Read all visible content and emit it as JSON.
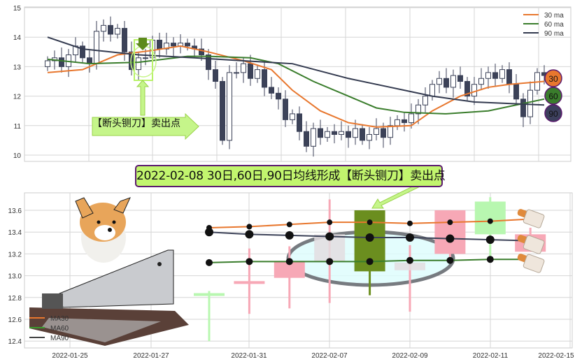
{
  "chart_data": [
    {
      "type": "candlestick",
      "yticks": [
        10,
        11,
        12,
        13,
        14,
        15
      ],
      "ylim": [
        9.8,
        15.1
      ],
      "grid": true,
      "legend_placement": "top-right",
      "legend": [
        {
          "label": "30 ma",
          "color": "#e8772e"
        },
        {
          "label": "60 ma",
          "color": "#3a7d2c"
        },
        {
          "label": "90 ma",
          "color": "#333a4f"
        }
      ],
      "close": [
        13.2,
        13.3,
        13.0,
        13.4,
        13.7,
        13.3,
        13.1,
        14.2,
        14.4,
        14.1,
        14.3,
        13.5,
        12.9,
        13.3,
        13.3,
        13.9,
        13.6,
        13.8,
        13.7,
        13.8,
        13.7,
        13.6,
        13.4,
        12.9,
        12.5,
        10.5,
        12.8,
        12.8,
        13.1,
        12.6,
        12.9,
        12.3,
        12.1,
        11.9,
        11.2,
        11.4,
        10.8,
        10.3,
        10.9,
        10.6,
        10.8,
        10.7,
        10.8,
        10.6,
        10.9,
        10.5,
        10.7,
        10.9,
        10.6,
        11.0,
        11.2,
        11.1,
        11.4,
        11.7,
        12.0,
        12.4,
        12.6,
        12.3,
        12.7,
        12.5,
        12.0,
        12.4,
        12.6,
        12.8,
        12.6,
        12.9,
        12.4,
        11.9,
        11.3,
        12.2,
        12.8,
        12.7
      ],
      "ma30": [
        [
          0,
          12.8
        ],
        [
          5,
          12.9
        ],
        [
          10,
          13.4
        ],
        [
          15,
          13.55
        ],
        [
          19,
          13.7
        ],
        [
          23,
          13.5
        ],
        [
          28,
          13.2
        ],
        [
          32,
          12.9
        ],
        [
          35,
          12.2
        ],
        [
          39,
          11.5
        ],
        [
          43,
          11.1
        ],
        [
          47,
          10.95
        ],
        [
          52,
          11.0
        ],
        [
          55,
          11.5
        ],
        [
          59,
          12.0
        ],
        [
          63,
          12.3
        ],
        [
          66,
          12.4
        ],
        [
          71,
          12.5
        ]
      ],
      "ma60": [
        [
          0,
          13.25
        ],
        [
          6,
          13.1
        ],
        [
          13,
          13.15
        ],
        [
          20,
          13.35
        ],
        [
          23,
          13.35
        ],
        [
          29,
          13.3
        ],
        [
          33,
          13.1
        ],
        [
          38,
          12.5
        ],
        [
          43,
          12.0
        ],
        [
          47,
          11.6
        ],
        [
          51,
          11.45
        ],
        [
          57,
          11.4
        ],
        [
          63,
          11.5
        ],
        [
          67,
          11.7
        ],
        [
          71,
          11.9
        ]
      ],
      "ma90": [
        [
          0,
          14.0
        ],
        [
          5,
          13.6
        ],
        [
          13,
          13.4
        ],
        [
          21,
          13.3
        ],
        [
          28,
          13.2
        ],
        [
          35,
          13.1
        ],
        [
          43,
          12.6
        ],
        [
          49,
          12.3
        ],
        [
          55,
          12.0
        ],
        [
          61,
          11.8
        ],
        [
          66,
          11.75
        ],
        [
          71,
          11.7
        ]
      ],
      "annotation": "【断头铡刀】卖出点",
      "badges": [
        {
          "label": "30",
          "color": "#e8772e"
        },
        {
          "label": "60",
          "color": "#3a7d2c"
        },
        {
          "label": "90",
          "color": "#3c3f5c"
        }
      ]
    },
    {
      "type": "candlestick",
      "yticks": [
        12.4,
        12.6,
        12.8,
        13.0,
        13.2,
        13.4,
        13.6
      ],
      "ylim": [
        12.33,
        13.76
      ],
      "xticks": [
        "2022-01-25",
        "2022-01-27",
        "2022-01-31",
        "2022-02-07",
        "2022-02-09",
        "2022-02-11",
        "2022-02-15"
      ],
      "grid": true,
      "legend_placement": "bottom-left",
      "legend": [
        {
          "label": "MA30",
          "color": "#e8772e"
        },
        {
          "label": "MA60",
          "color": "#3a9a2c"
        },
        {
          "label": "MA90",
          "color": "#444"
        }
      ],
      "candles": [
        {
          "o": 12.82,
          "c": 12.84,
          "h": 12.86,
          "l": 12.4,
          "color": "#b8f7b0"
        },
        {
          "o": 12.95,
          "c": 12.95,
          "h": 13.25,
          "l": 12.65,
          "color": "#f7a8b6"
        },
        {
          "o": 12.98,
          "c": 13.13,
          "h": 13.27,
          "l": 12.7,
          "color": "#f7a8b6"
        },
        {
          "o": 13.13,
          "c": 13.38,
          "h": 13.7,
          "l": 12.75,
          "color": "#e3dde0"
        },
        {
          "o": 13.6,
          "c": 13.04,
          "h": 13.6,
          "l": 12.82,
          "color": "#6b8e1f"
        },
        {
          "o": 13.05,
          "c": 13.12,
          "h": 13.28,
          "l": 12.67,
          "color": "#e3dde0"
        },
        {
          "o": 13.2,
          "c": 13.6,
          "h": 13.6,
          "l": 13.12,
          "color": "#f7a8b6"
        },
        {
          "o": 13.68,
          "c": 13.38,
          "h": 13.72,
          "l": 13.14,
          "color": "#b8f7b0"
        },
        {
          "o": 13.22,
          "c": 13.38,
          "h": 13.44,
          "l": 13.22,
          "color": "#f7a8b6"
        }
      ],
      "ma30": [
        13.44,
        13.45,
        13.47,
        13.49,
        13.49,
        13.48,
        13.49,
        13.5,
        13.52
      ],
      "ma60": [
        13.12,
        13.13,
        13.13,
        13.13,
        13.13,
        13.14,
        13.14,
        13.15,
        13.15
      ],
      "ma90": [
        13.4,
        13.38,
        13.37,
        13.36,
        13.35,
        13.35,
        13.34,
        13.33,
        13.32
      ]
    }
  ],
  "banner": "2022-02-08 30日,60日,90日均线形成【断头铡刀】卖出点"
}
